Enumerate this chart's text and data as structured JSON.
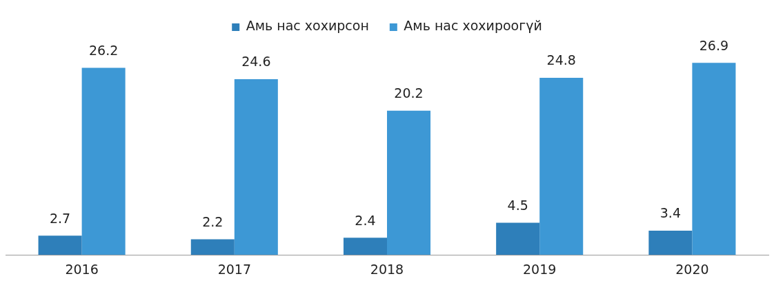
{
  "chart_data": {
    "type": "bar",
    "categories": [
      "2016",
      "2017",
      "2018",
      "2019",
      "2020"
    ],
    "series": [
      {
        "name": "Амь нас хохирсон",
        "color": "#2e7fba",
        "values": [
          2.7,
          2.2,
          2.4,
          4.5,
          3.4
        ]
      },
      {
        "name": "Амь нас хохироогүй",
        "color": "#3d98d5",
        "values": [
          26.2,
          24.6,
          20.2,
          24.8,
          26.9
        ]
      }
    ],
    "data_labels": true,
    "legend": "top",
    "grid": false
  }
}
